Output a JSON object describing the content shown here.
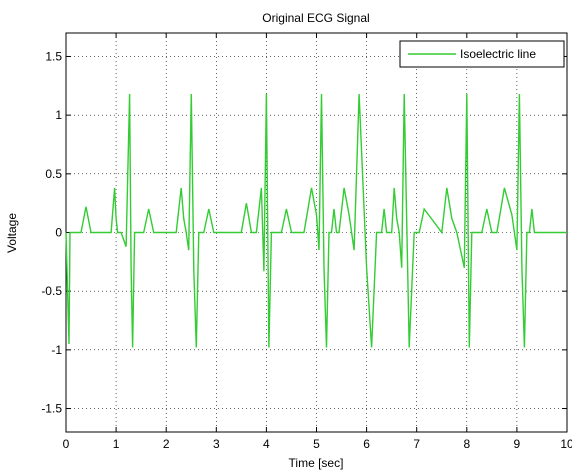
{
  "chart_data": {
    "type": "line",
    "title": "Original ECG Signal",
    "xlabel": "Time [sec]",
    "ylabel": "Voltage",
    "xlim": [
      0,
      10
    ],
    "ylim": [
      -1.7,
      1.7
    ],
    "xticks": [
      0,
      1,
      2,
      3,
      4,
      5,
      6,
      7,
      8,
      9,
      10
    ],
    "xtick_labels": [
      "0",
      "1",
      "2",
      "3",
      "4",
      "5",
      "6",
      "7",
      "8",
      "9",
      "10"
    ],
    "yticks": [
      1.5,
      1,
      0.5,
      0,
      -0.5,
      -1,
      -1.5
    ],
    "ytick_labels": [
      "1.5",
      "1",
      "0.5",
      "0",
      "-0.5",
      "-1",
      "-1.5"
    ],
    "grid": true,
    "legend": {
      "position": "top-right",
      "entries": [
        "Isoelectric line"
      ]
    },
    "series": [
      {
        "name": "Isoelectric line",
        "color": "#33cc33",
        "x": [
          0,
          0.06,
          0.08,
          0.1,
          0.2,
          0.3,
          0.4,
          0.5,
          0.6,
          0.8,
          0.9,
          0.97,
          1.0,
          1.03,
          1.1,
          1.2,
          1.27,
          1.3,
          1.33,
          1.37,
          1.43,
          1.55,
          1.65,
          1.75,
          1.85,
          2.0,
          2.2,
          2.3,
          2.35,
          2.4,
          2.45,
          2.5,
          2.55,
          2.6,
          2.65,
          2.7,
          2.75,
          2.85,
          2.95,
          3.05,
          3.15,
          3.4,
          3.5,
          3.6,
          3.7,
          3.8,
          3.9,
          3.95,
          4.0,
          4.05,
          4.1,
          4.3,
          4.4,
          4.5,
          4.6,
          4.75,
          4.9,
          5.0,
          5.05,
          5.1,
          5.15,
          5.2,
          5.25,
          5.3,
          5.35,
          5.4,
          5.45,
          5.55,
          5.65,
          5.75,
          5.85,
          6.0,
          6.1,
          6.2,
          6.3,
          6.35,
          6.4,
          6.45,
          6.5,
          6.55,
          6.6,
          6.65,
          6.7,
          6.75,
          6.85,
          6.95,
          7.05,
          7.15,
          7.5,
          7.6,
          7.7,
          7.8,
          7.95,
          8.0,
          8.05,
          8.1,
          8.3,
          8.4,
          8.5,
          8.6,
          8.75,
          8.9,
          9.0,
          9.05,
          9.1,
          9.15,
          9.2,
          9.25,
          9.3,
          9.35,
          9.4,
          9.45,
          9.55,
          9.65,
          9.75,
          9.85,
          10.0
        ],
        "y": [
          0,
          -0.95,
          0,
          0,
          0,
          0,
          0.22,
          0,
          0,
          0,
          0,
          0.38,
          0.12,
          0,
          0,
          -0.12,
          1.18,
          -0.3,
          -0.98,
          0,
          0,
          0,
          0.2,
          0,
          0,
          0,
          0,
          0.38,
          0.12,
          0,
          -0.15,
          1.18,
          -0.32,
          -0.98,
          0,
          0,
          0,
          0.2,
          0,
          0,
          0,
          0,
          0,
          0.25,
          0,
          0,
          0.38,
          -0.33,
          1.18,
          -0.98,
          0,
          0,
          0.2,
          0,
          0,
          0,
          0.38,
          0.15,
          -0.15,
          1.18,
          -0.3,
          -0.98,
          0,
          0,
          0.2,
          0,
          0,
          0.38,
          0.15,
          -0.15,
          1.18,
          -0.3,
          -0.98,
          0,
          0,
          0.2,
          0,
          0,
          0,
          0.38,
          0.12,
          0,
          -0.3,
          1.18,
          -0.98,
          0,
          0,
          0.2,
          0,
          0.38,
          0.12,
          0,
          -0.3,
          1.18,
          -0.98,
          0,
          0,
          0.2,
          0,
          0,
          0.38,
          0.15,
          -0.15,
          1.18,
          -0.3,
          -0.98,
          0,
          0,
          0.2,
          0,
          0,
          0,
          0,
          0,
          0,
          0,
          0
        ]
      }
    ]
  }
}
